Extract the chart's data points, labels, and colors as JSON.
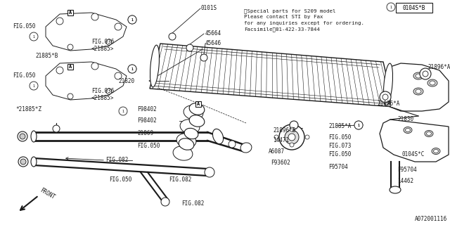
{
  "bg_color": "#ffffff",
  "line_color": "#1a1a1a",
  "note_lines": [
    "※Special parts for S209 model",
    "Please contact STI by Fax",
    "for any inquiries except for ordering.",
    "Facsimile：81-422-33-7844"
  ],
  "badge_text": "0104S*B",
  "bottom_ref": "A072001116"
}
